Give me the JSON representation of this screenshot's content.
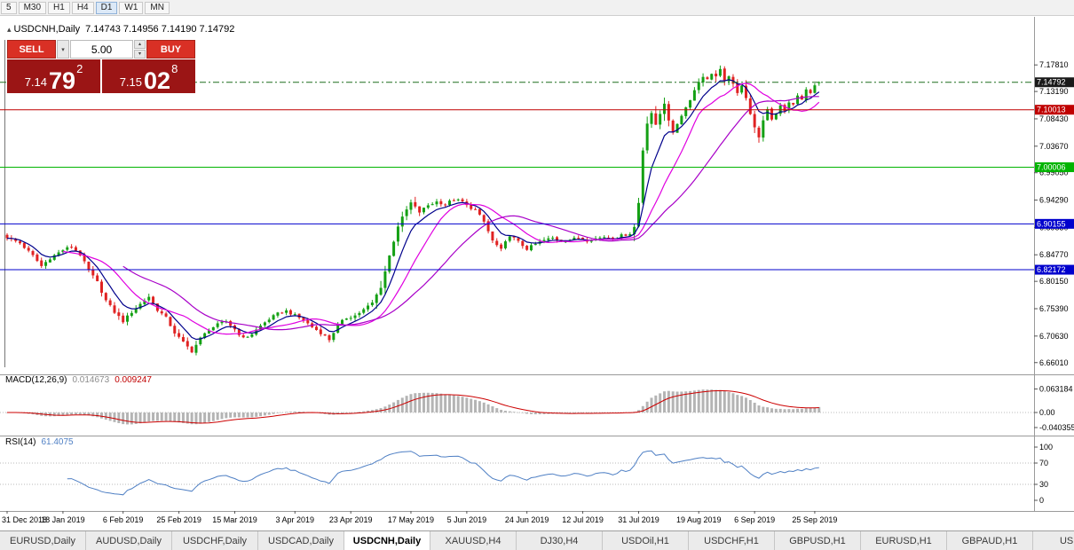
{
  "toolbar": {
    "timeframes": [
      "5",
      "M30",
      "H1",
      "H4",
      "D1",
      "W1",
      "MN"
    ],
    "active": "D1"
  },
  "chart_title": {
    "marker": "▴",
    "symbol": "USDCNH,Daily",
    "ohlc": "7.14743 7.14956 7.14190 7.14792"
  },
  "trade_widget": {
    "sell_label": "SELL",
    "buy_label": "BUY",
    "volume": "5.00",
    "icons": {
      "dropdown_arrow": "▾",
      "spin_up": "▴",
      "spin_down": "▾"
    },
    "sell_price": {
      "prefix": "7.14",
      "pips": "79",
      "pt": "2"
    },
    "buy_price": {
      "prefix": "7.15",
      "pips": "02",
      "pt": "8"
    }
  },
  "macd_panel": {
    "name": "MACD(12,26,9)",
    "main_value": "0.014673",
    "signal_value": "0.009247",
    "axis_labels": [
      {
        "v": 0.063184,
        "label": "0.063184"
      },
      {
        "v": 0,
        "label": "0.00"
      },
      {
        "v": -0.040355,
        "label": "-0.040355"
      }
    ]
  },
  "rsi_panel": {
    "name": "RSI(14)",
    "value": "61.4075",
    "levels": [
      70,
      30
    ],
    "axis_labels": [
      {
        "v": 100,
        "label": "100"
      },
      {
        "v": 70,
        "label": "70"
      },
      {
        "v": 30,
        "label": "30"
      },
      {
        "v": 0,
        "label": "0"
      }
    ]
  },
  "tabs": {
    "active_index": 4,
    "items": [
      "EURUSD,Daily",
      "AUDUSD,Daily",
      "USDCHF,Daily",
      "USDCAD,Daily",
      "USDCNH,Daily",
      "XAUUSD,H4",
      "DJ30,H4",
      "USDOil,H1",
      "USDCHF,H1",
      "GBPUSD,H1",
      "EURUSD,H1",
      "GBPAUD,H1",
      "USDJP"
    ]
  },
  "chart_data": {
    "type": "candlestick",
    "symbol": "USDCNH",
    "timeframe": "Daily",
    "last_ohlc": {
      "open": 7.14743,
      "high": 7.14956,
      "low": 7.1419,
      "close": 7.14792
    },
    "ylim": [
      6.652,
      7.2
    ],
    "candle_count": 190,
    "up_color": "#14a014",
    "down_color": "#e02222",
    "y_ticks": [
      "7.17810",
      "7.13190",
      "7.08430",
      "7.03670",
      "6.99050",
      "6.94290",
      "6.89530",
      "6.84770",
      "6.80150",
      "6.75390",
      "6.70630",
      "6.66010"
    ],
    "x_ticks": [
      {
        "i": 0,
        "label": "31 Dec 2018"
      },
      {
        "i": 13,
        "label": "18 Jan 2019"
      },
      {
        "i": 27,
        "label": "6 Feb 2019"
      },
      {
        "i": 40,
        "label": "25 Feb 2019"
      },
      {
        "i": 53,
        "label": "15 Mar 2019"
      },
      {
        "i": 67,
        "label": "3 Apr 2019"
      },
      {
        "i": 80,
        "label": "23 Apr 2019"
      },
      {
        "i": 94,
        "label": "17 May 2019"
      },
      {
        "i": 107,
        "label": "5 Jun 2019"
      },
      {
        "i": 121,
        "label": "24 Jun 2019"
      },
      {
        "i": 134,
        "label": "12 Jul 2019"
      },
      {
        "i": 147,
        "label": "31 Jul 2019"
      },
      {
        "i": 161,
        "label": "19 Aug 2019"
      },
      {
        "i": 174,
        "label": "6 Sep 2019"
      },
      {
        "i": 188,
        "label": "25 Sep 2019"
      }
    ],
    "hlines": [
      {
        "value": 7.10013,
        "label": "7.10013",
        "color": "#c00000"
      },
      {
        "value": 7.00006,
        "label": "7.00006",
        "color": "#00b400"
      },
      {
        "value": 6.90155,
        "label": "6.90155",
        "color": "#0000cd"
      },
      {
        "value": 6.82172,
        "label": "6.82172",
        "color": "#0000cd"
      }
    ],
    "price_line": {
      "value": 7.14792,
      "label": "7.14792",
      "color": "#1e6e1e",
      "label_bg": "#1a1a1a"
    },
    "ma_overlays": [
      {
        "type": "ema",
        "period": 7,
        "color": "#00008b"
      },
      {
        "type": "sma",
        "period": 14,
        "color": "#e000e0"
      },
      {
        "type": "sma",
        "period": 28,
        "color": "#a800c8"
      }
    ],
    "macd": {
      "fast": 12,
      "slow": 26,
      "signal": 9,
      "hist_color": "#b4b4b4",
      "signal_color": "#cc0000"
    },
    "rsi": {
      "period": 14,
      "color": "#4e7fc4"
    },
    "close_anchors": [
      [
        0,
        6.878
      ],
      [
        3,
        6.868
      ],
      [
        6,
        6.846
      ],
      [
        8,
        6.828
      ],
      [
        10,
        6.842
      ],
      [
        13,
        6.856
      ],
      [
        15,
        6.862
      ],
      [
        17,
        6.848
      ],
      [
        19,
        6.82
      ],
      [
        21,
        6.8
      ],
      [
        23,
        6.768
      ],
      [
        25,
        6.748
      ],
      [
        27,
        6.732
      ],
      [
        29,
        6.748
      ],
      [
        31,
        6.762
      ],
      [
        33,
        6.775
      ],
      [
        35,
        6.752
      ],
      [
        37,
        6.738
      ],
      [
        39,
        6.712
      ],
      [
        41,
        6.695
      ],
      [
        43,
        6.68
      ],
      [
        45,
        6.702
      ],
      [
        47,
        6.718
      ],
      [
        49,
        6.726
      ],
      [
        51,
        6.732
      ],
      [
        53,
        6.718
      ],
      [
        55,
        6.702
      ],
      [
        57,
        6.71
      ],
      [
        59,
        6.724
      ],
      [
        61,
        6.736
      ],
      [
        63,
        6.745
      ],
      [
        65,
        6.75
      ],
      [
        67,
        6.742
      ],
      [
        69,
        6.734
      ],
      [
        71,
        6.722
      ],
      [
        73,
        6.712
      ],
      [
        75,
        6.7
      ],
      [
        77,
        6.726
      ],
      [
        79,
        6.738
      ],
      [
        81,
        6.742
      ],
      [
        83,
        6.752
      ],
      [
        85,
        6.764
      ],
      [
        87,
        6.792
      ],
      [
        89,
        6.846
      ],
      [
        91,
        6.898
      ],
      [
        93,
        6.926
      ],
      [
        94,
        6.938
      ],
      [
        96,
        6.922
      ],
      [
        98,
        6.934
      ],
      [
        100,
        6.94
      ],
      [
        102,
        6.936
      ],
      [
        104,
        6.944
      ],
      [
        106,
        6.94
      ],
      [
        107,
        6.933
      ],
      [
        109,
        6.926
      ],
      [
        111,
        6.905
      ],
      [
        113,
        6.872
      ],
      [
        115,
        6.856
      ],
      [
        117,
        6.882
      ],
      [
        119,
        6.87
      ],
      [
        121,
        6.858
      ],
      [
        123,
        6.866
      ],
      [
        125,
        6.873
      ],
      [
        127,
        6.877
      ],
      [
        129,
        6.872
      ],
      [
        131,
        6.874
      ],
      [
        133,
        6.877
      ],
      [
        135,
        6.873
      ],
      [
        137,
        6.876
      ],
      [
        139,
        6.879
      ],
      [
        141,
        6.876
      ],
      [
        143,
        6.881
      ],
      [
        145,
        6.885
      ],
      [
        146,
        6.896
      ],
      [
        147,
        6.938
      ],
      [
        148,
        7.03
      ],
      [
        149,
        7.078
      ],
      [
        150,
        7.095
      ],
      [
        151,
        7.072
      ],
      [
        152,
        7.093
      ],
      [
        153,
        7.112
      ],
      [
        154,
        7.083
      ],
      [
        155,
        7.058
      ],
      [
        156,
        7.076
      ],
      [
        157,
        7.091
      ],
      [
        158,
        7.104
      ],
      [
        159,
        7.119
      ],
      [
        160,
        7.134
      ],
      [
        161,
        7.149
      ],
      [
        162,
        7.159
      ],
      [
        163,
        7.152
      ],
      [
        164,
        7.164
      ],
      [
        165,
        7.158
      ],
      [
        166,
        7.169
      ],
      [
        167,
        7.148
      ],
      [
        168,
        7.16
      ],
      [
        169,
        7.143
      ],
      [
        170,
        7.128
      ],
      [
        171,
        7.144
      ],
      [
        172,
        7.122
      ],
      [
        173,
        7.093
      ],
      [
        174,
        7.068
      ],
      [
        175,
        7.054
      ],
      [
        176,
        7.08
      ],
      [
        177,
        7.099
      ],
      [
        178,
        7.084
      ],
      [
        179,
        7.094
      ],
      [
        180,
        7.109
      ],
      [
        181,
        7.099
      ],
      [
        182,
        7.114
      ],
      [
        183,
        7.108
      ],
      [
        184,
        7.124
      ],
      [
        185,
        7.119
      ],
      [
        186,
        7.134
      ],
      [
        187,
        7.129
      ],
      [
        188,
        7.142
      ],
      [
        189,
        7.14792
      ]
    ]
  }
}
